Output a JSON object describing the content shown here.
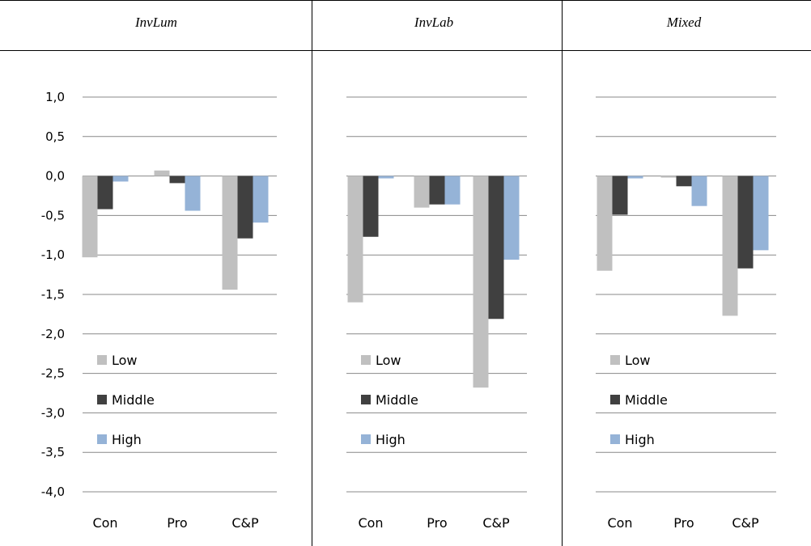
{
  "table": {
    "columns": [
      "InvLum",
      "InvLab",
      "Mixed"
    ]
  },
  "legend_colors": {
    "Low": "#c0c0c0",
    "Middle": "#404040",
    "High": "#95b3d7"
  },
  "chart_data": [
    {
      "type": "bar",
      "title": "InvLum",
      "categories": [
        "Con",
        "Pro",
        "C&P"
      ],
      "y_tick_labels": [
        "1,0",
        "0,5",
        "0,0",
        "-0,5",
        "-1,0",
        "-1,5",
        "-2,0",
        "-2,5",
        "-3,0",
        "-3,5",
        "-4,0"
      ],
      "ylim": [
        -4.0,
        1.0
      ],
      "grid": true,
      "legend_position": "lower-left",
      "series": [
        {
          "name": "Low",
          "values": [
            -1.03,
            0.07,
            -1.44
          ]
        },
        {
          "name": "Middle",
          "values": [
            -0.42,
            -0.09,
            -0.79
          ]
        },
        {
          "name": "High",
          "values": [
            -0.07,
            -0.44,
            -0.59
          ]
        }
      ]
    },
    {
      "type": "bar",
      "title": "InvLab",
      "categories": [
        "Con",
        "Pro",
        "C&P"
      ],
      "ylim": [
        -4.0,
        1.0
      ],
      "grid": true,
      "legend_position": "lower-left",
      "series": [
        {
          "name": "Low",
          "values": [
            -1.6,
            -0.4,
            -2.68
          ]
        },
        {
          "name": "Middle",
          "values": [
            -0.77,
            -0.36,
            -1.81
          ]
        },
        {
          "name": "High",
          "values": [
            -0.03,
            -0.36,
            -1.06
          ]
        }
      ]
    },
    {
      "type": "bar",
      "title": "Mixed",
      "categories": [
        "Con",
        "Pro",
        "C&P"
      ],
      "ylim": [
        -4.0,
        1.0
      ],
      "grid": true,
      "legend_position": "lower-left",
      "series": [
        {
          "name": "Low",
          "values": [
            -1.2,
            -0.02,
            -1.77
          ]
        },
        {
          "name": "Middle",
          "values": [
            -0.49,
            -0.13,
            -1.17
          ]
        },
        {
          "name": "High",
          "values": [
            -0.03,
            -0.38,
            -0.94
          ]
        }
      ]
    }
  ]
}
